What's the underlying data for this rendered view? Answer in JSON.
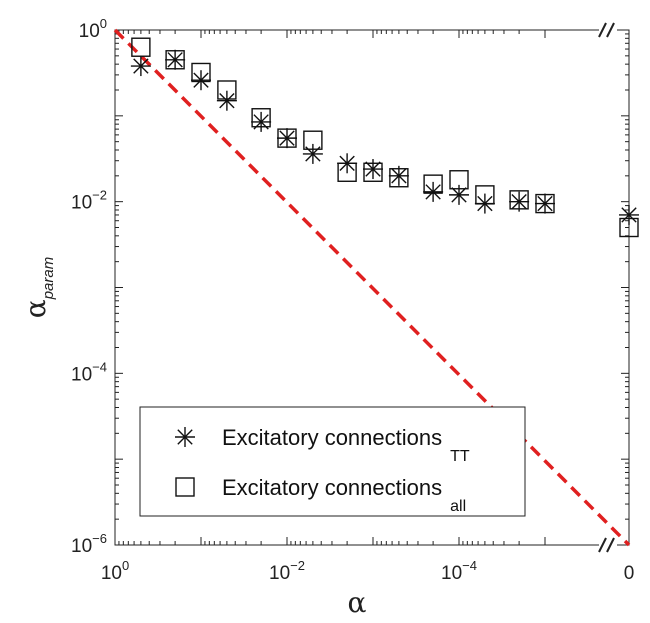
{
  "chart_data": {
    "type": "scatter",
    "xlabel": "α",
    "ylabel": "α",
    "ylabel_sub": "param",
    "x_scale": "log (reversed, with break to 0)",
    "y_scale": "log",
    "xlim": [
      1,
      0
    ],
    "ylim": [
      1e-06,
      1
    ],
    "x_ticks": [
      {
        "base": "10",
        "exp": "0",
        "value": 1
      },
      {
        "base": "10",
        "exp": "−2",
        "value": 0.01
      },
      {
        "base": "10",
        "exp": "−4",
        "value": 0.0001
      },
      {
        "base": "0",
        "exp": "",
        "value": 0
      }
    ],
    "y_ticks": [
      {
        "base": "10",
        "exp": "0",
        "value": 1
      },
      {
        "base": "10",
        "exp": "−2",
        "value": 0.01
      },
      {
        "base": "10",
        "exp": "−4",
        "value": 0.0001
      },
      {
        "base": "10",
        "exp": "−6",
        "value": 1e-06
      }
    ],
    "reference_line": {
      "name": "y = x",
      "color": "#e02020",
      "style": "dashed"
    },
    "series": [
      {
        "name": "Excitatory connections",
        "legend_sub": "TT",
        "marker": "asterisk",
        "x": [
          0.5,
          0.2,
          0.1,
          0.05,
          0.02,
          0.01,
          0.005,
          0.002,
          0.001,
          0.0005,
          0.0002,
          0.0001,
          5e-05,
          2e-05,
          1e-05,
          0
        ],
        "y": [
          0.38,
          0.45,
          0.26,
          0.15,
          0.085,
          0.055,
          0.036,
          0.028,
          0.024,
          0.02,
          0.013,
          0.012,
          0.0095,
          0.01,
          0.0095,
          0.007
        ]
      },
      {
        "name": "Excitatory connections",
        "legend_sub": "all",
        "marker": "square",
        "x": [
          0.5,
          0.2,
          0.1,
          0.05,
          0.02,
          0.01,
          0.005,
          0.002,
          0.001,
          0.0005,
          0.0002,
          0.0001,
          5e-05,
          2e-05,
          1e-05,
          0
        ],
        "y": [
          0.63,
          0.45,
          0.32,
          0.2,
          0.095,
          0.055,
          0.052,
          0.022,
          0.022,
          0.019,
          0.016,
          0.018,
          0.012,
          0.0105,
          0.0095,
          0.005
        ]
      }
    ],
    "legend": {
      "position": "bottom-left"
    }
  }
}
